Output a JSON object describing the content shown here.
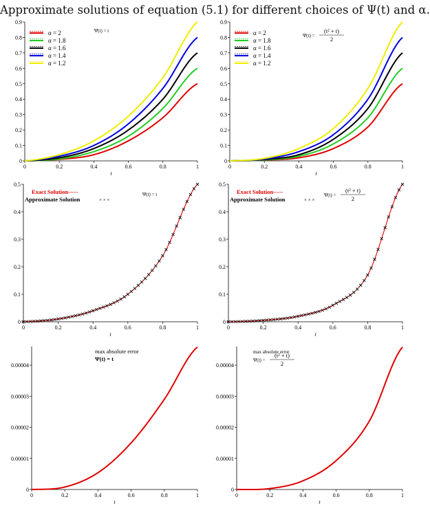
{
  "caption": "Approximate solutions of equation (5.1) for different choices of Ψ(t) and α.",
  "chart_data": [
    {
      "type": "line",
      "panel": "top-left",
      "xlabel": "t",
      "xlim": [
        0,
        1
      ],
      "ylim": [
        0,
        0.9
      ],
      "xticks": [
        "0",
        "0.2",
        "0.4",
        "0.6",
        "0.8",
        "1"
      ],
      "yticks": [
        "0",
        "0.1",
        "0.2",
        "0.3",
        "0.4",
        "0.5",
        "0.6",
        "0.7",
        "0.8",
        "0.9"
      ],
      "annotation": "Ψ(t) = t",
      "legend": "top-left",
      "series": [
        {
          "name": "α = 2",
          "color": "#e00000",
          "x": [
            0,
            0.2,
            0.4,
            0.6,
            0.8,
            1.0
          ],
          "y": [
            0,
            0.01,
            0.04,
            0.13,
            0.28,
            0.5
          ]
        },
        {
          "name": "α = 1.8",
          "color": "#22cc22",
          "x": [
            0,
            0.2,
            0.4,
            0.6,
            0.8,
            1.0
          ],
          "y": [
            0,
            0.013,
            0.06,
            0.16,
            0.34,
            0.6
          ]
        },
        {
          "name": "α = 1.6",
          "color": "#000000",
          "x": [
            0,
            0.2,
            0.4,
            0.6,
            0.8,
            1.0
          ],
          "y": [
            0,
            0.02,
            0.08,
            0.2,
            0.4,
            0.7
          ]
        },
        {
          "name": "α = 1.4",
          "color": "#0000dd",
          "x": [
            0,
            0.2,
            0.4,
            0.6,
            0.8,
            1.0
          ],
          "y": [
            0,
            0.03,
            0.1,
            0.24,
            0.47,
            0.8
          ]
        },
        {
          "name": "α = 1.2",
          "color": "#eeee00",
          "x": [
            0,
            0.2,
            0.4,
            0.6,
            0.8,
            1.0
          ],
          "y": [
            0,
            0.04,
            0.13,
            0.29,
            0.54,
            0.9
          ]
        }
      ]
    },
    {
      "type": "line",
      "panel": "top-right",
      "xlabel": "t",
      "xlim": [
        0,
        1
      ],
      "ylim": [
        0,
        0.9
      ],
      "xticks": [
        "0",
        "0.2",
        "0.4",
        "0.6",
        "0.8",
        "1"
      ],
      "yticks": [
        "0",
        "0.1",
        "0.2",
        "0.3",
        "0.4",
        "0.5",
        "0.6",
        "0.7",
        "0.8",
        "0.9"
      ],
      "annotation": {
        "lhs": "Ψ(t) =",
        "numerator": "(t² + t)",
        "denominator": "2"
      },
      "legend": "top-left",
      "series": [
        {
          "name": "α = 2",
          "color": "#e00000",
          "x": [
            0,
            0.2,
            0.4,
            0.6,
            0.8,
            1.0
          ],
          "y": [
            0,
            0.005,
            0.02,
            0.08,
            0.22,
            0.5
          ]
        },
        {
          "name": "α = 1.8",
          "color": "#22cc22",
          "x": [
            0,
            0.2,
            0.4,
            0.6,
            0.8,
            1.0
          ],
          "y": [
            0,
            0.006,
            0.03,
            0.11,
            0.28,
            0.6
          ]
        },
        {
          "name": "α = 1.6",
          "color": "#000000",
          "x": [
            0,
            0.2,
            0.4,
            0.6,
            0.8,
            1.0
          ],
          "y": [
            0,
            0.009,
            0.04,
            0.14,
            0.34,
            0.7
          ]
        },
        {
          "name": "α = 1.4",
          "color": "#0000dd",
          "x": [
            0,
            0.2,
            0.4,
            0.6,
            0.8,
            1.0
          ],
          "y": [
            0,
            0.012,
            0.06,
            0.17,
            0.4,
            0.8
          ]
        },
        {
          "name": "α = 1.2",
          "color": "#eeee00",
          "x": [
            0,
            0.2,
            0.4,
            0.6,
            0.8,
            1.0
          ],
          "y": [
            0,
            0.016,
            0.08,
            0.21,
            0.47,
            0.9
          ]
        }
      ]
    },
    {
      "type": "line",
      "panel": "middle-left",
      "xlabel": "t",
      "xlim": [
        0,
        1
      ],
      "ylim": [
        0,
        0.5
      ],
      "xticks": [
        "0",
        "0.2",
        "0.4",
        "0.6",
        "0.8",
        "1"
      ],
      "yticks": [
        "0",
        "0.1",
        "0.2",
        "0.3",
        "0.4",
        "0.5"
      ],
      "annotation": "Ψ(t) = t",
      "legend_lines": [
        "Exact Solution-----",
        "Approximate Solution",
        "× × ×"
      ],
      "exact": {
        "x": [
          0,
          0.2,
          0.4,
          0.6,
          0.8,
          1.0
        ],
        "y": [
          0,
          0.01,
          0.04,
          0.1,
          0.24,
          0.5
        ]
      },
      "approximate": {
        "x": [
          0,
          0.2,
          0.4,
          0.6,
          0.8,
          1.0
        ],
        "y": [
          0,
          0.01,
          0.04,
          0.1,
          0.24,
          0.5
        ]
      }
    },
    {
      "type": "line",
      "panel": "middle-right",
      "xlabel": "t",
      "xlim": [
        0,
        1
      ],
      "ylim": [
        0,
        0.5
      ],
      "xticks": [
        "0",
        "0.2",
        "0.4",
        "0.6",
        "0.8",
        "1"
      ],
      "yticks": [
        "0",
        "0.1",
        "0.2",
        "0.3",
        "0.4",
        "0.5"
      ],
      "annotation": {
        "lhs": "Ψ(t) =",
        "numerator": "(t² + t)",
        "denominator": "2"
      },
      "legend_lines": [
        "Exact Solution-----",
        "Approximate Solution",
        "× × ×"
      ],
      "exact": {
        "x": [
          0,
          0.2,
          0.4,
          0.6,
          0.8,
          1.0
        ],
        "y": [
          0,
          0.005,
          0.02,
          0.06,
          0.17,
          0.5
        ]
      },
      "approximate": {
        "x": [
          0,
          0.2,
          0.4,
          0.6,
          0.8,
          1.0
        ],
        "y": [
          0,
          0.005,
          0.02,
          0.06,
          0.17,
          0.5
        ]
      }
    },
    {
      "type": "line",
      "panel": "bottom-left",
      "xlabel": "t",
      "xlim": [
        0,
        1
      ],
      "ylim": [
        0,
        4.6e-05
      ],
      "xticks": [
        "0",
        "0.2",
        "0.4",
        "0.6",
        "0.8",
        "1"
      ],
      "yticks": [
        "0",
        "0.00001",
        "0.00002",
        "0.00003",
        "0.00004"
      ],
      "title": "max absolute error",
      "annotation": "Ψ(t) = t",
      "series": [
        {
          "color": "#e00000",
          "x": [
            0,
            0.2,
            0.4,
            0.6,
            0.8,
            1.0
          ],
          "y": [
            0,
            8e-07,
            5.4e-06,
            1.5e-05,
            2.9e-05,
            4.58e-05
          ]
        }
      ]
    },
    {
      "type": "line",
      "panel": "bottom-right",
      "xlabel": "t",
      "xlim": [
        0,
        1
      ],
      "ylim": [
        0,
        4.6e-05
      ],
      "xticks": [
        "0",
        "0.2",
        "0.4",
        "0.6",
        "0.8",
        "1"
      ],
      "yticks": [
        "0",
        "0.00001",
        "0.00002",
        "0.00003",
        "0.00004"
      ],
      "title": "max absolute error",
      "annotation": {
        "lhs": "Ψ(t) =",
        "numerator": "(t² + t)",
        "denominator": "2"
      },
      "series": [
        {
          "color": "#e00000",
          "x": [
            0,
            0.2,
            0.4,
            0.6,
            0.8,
            1.0
          ],
          "y": [
            0,
            3e-07,
            2.8e-06,
            9.3e-06,
            2.2e-05,
            4.58e-05
          ]
        }
      ]
    }
  ]
}
